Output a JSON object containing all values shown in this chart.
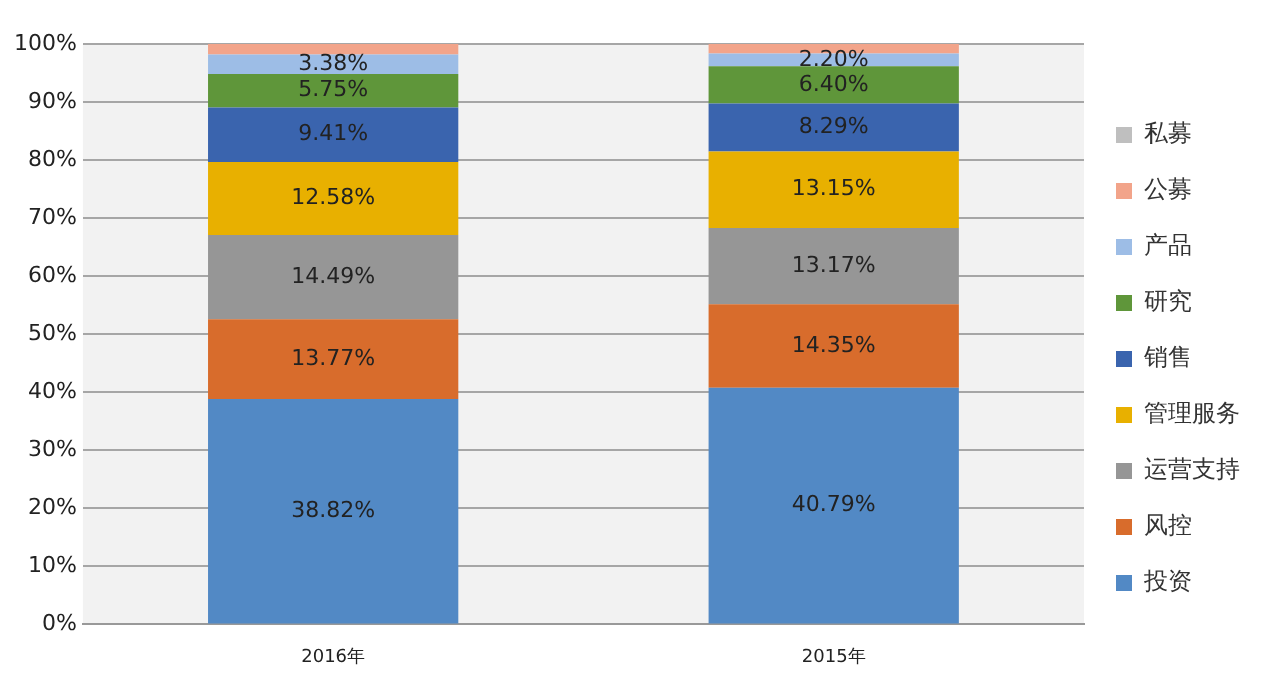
{
  "chart_data": {
    "type": "bar",
    "stacked": true,
    "categories": [
      "2016年",
      "2015年"
    ],
    "series": [
      {
        "name": "投资",
        "color": "#5289c5",
        "values": [
          38.82,
          40.79
        ],
        "value_labels": [
          "38.82%",
          "40.79%"
        ]
      },
      {
        "name": "风控",
        "color": "#d86c2c",
        "values": [
          13.77,
          14.35
        ],
        "value_labels": [
          "13.77%",
          "14.35%"
        ]
      },
      {
        "name": "运营支持",
        "color": "#969696",
        "values": [
          14.49,
          13.17
        ],
        "value_labels": [
          "14.49%",
          "13.17%"
        ]
      },
      {
        "name": "管理服务",
        "color": "#e8b000",
        "values": [
          12.58,
          13.15
        ],
        "value_labels": [
          "12.58%",
          "13.15%"
        ]
      },
      {
        "name": "销售",
        "color": "#3a64ae",
        "values": [
          9.41,
          8.29
        ],
        "value_labels": [
          "9.41%",
          "8.29%"
        ]
      },
      {
        "name": "研究",
        "color": "#5f963a",
        "values": [
          5.75,
          6.4
        ],
        "value_labels": [
          "5.75%",
          "6.40%"
        ]
      },
      {
        "name": "产品",
        "color": "#9dbde6",
        "values": [
          3.38,
          2.2
        ],
        "value_labels": [
          "3.38%",
          "2.20%"
        ]
      },
      {
        "name": "公募",
        "color": "#f2a48a",
        "values": [
          1.8,
          1.65
        ]
      },
      {
        "name": "私募",
        "color": "#bfbfbf",
        "values": [
          null,
          null
        ]
      }
    ],
    "ylim": [
      0,
      100
    ],
    "yticks": [
      {
        "value": 0,
        "label": "0%"
      },
      {
        "value": 10,
        "label": "10%"
      },
      {
        "value": 20,
        "label": "20%"
      },
      {
        "value": 30,
        "label": "30%"
      },
      {
        "value": 40,
        "label": "40%"
      },
      {
        "value": 50,
        "label": "50%"
      },
      {
        "value": 60,
        "label": "60%"
      },
      {
        "value": 70,
        "label": "70%"
      },
      {
        "value": 80,
        "label": "80%"
      },
      {
        "value": 90,
        "label": "90%"
      },
      {
        "value": 100,
        "label": "100%"
      }
    ],
    "grid": "y",
    "legend": "right"
  }
}
